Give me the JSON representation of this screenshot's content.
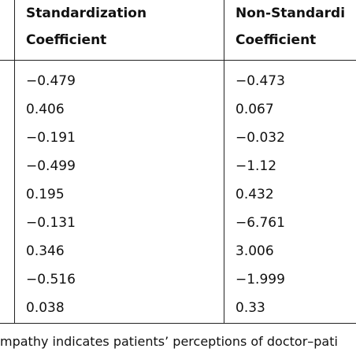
{
  "table": {
    "headers": [
      [
        "Standardization",
        "Coefficient"
      ],
      [
        "Non-Standardi",
        "Coefficient"
      ]
    ],
    "rows": [
      [
        "−0.479",
        "−0.473"
      ],
      [
        "0.406",
        "0.067"
      ],
      [
        "−0.191",
        "−0.032"
      ],
      [
        "−0.499",
        "−1.12"
      ],
      [
        "0.195",
        "0.432"
      ],
      [
        "−0.131",
        "−6.761"
      ],
      [
        "0.346",
        "3.006"
      ],
      [
        "−0.516",
        "−1.999"
      ],
      [
        "0.038",
        "0.33"
      ]
    ]
  },
  "footnote": "mpathy indicates patients’ perceptions of doctor–pati"
}
